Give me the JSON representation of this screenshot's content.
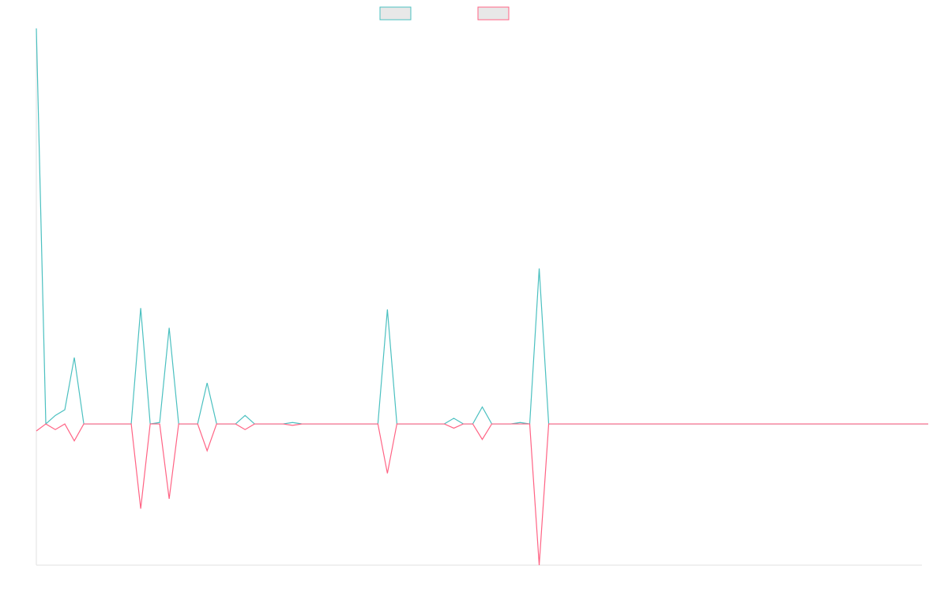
{
  "chart_data": {
    "type": "line",
    "title": "",
    "xlabel": "",
    "ylabel": "",
    "grid": false,
    "legend": "top-center",
    "x_count": 95,
    "ylim": [
      -1.0,
      2.8
    ],
    "series": [
      {
        "color": "#4bc0c0",
        "points": [
          {
            "i": 0,
            "v": 2.8
          },
          {
            "i": 2,
            "v": 0.06
          },
          {
            "i": 3,
            "v": 0.1
          },
          {
            "i": 4,
            "v": 0.47
          },
          {
            "i": 11,
            "v": 0.82
          },
          {
            "i": 13,
            "v": 0.01
          },
          {
            "i": 14,
            "v": 0.68
          },
          {
            "i": 18,
            "v": 0.29
          },
          {
            "i": 22,
            "v": 0.06
          },
          {
            "i": 27,
            "v": 0.01
          },
          {
            "i": 37,
            "v": 0.81
          },
          {
            "i": 44,
            "v": 0.04
          },
          {
            "i": 47,
            "v": 0.12
          },
          {
            "i": 51,
            "v": 0.01
          },
          {
            "i": 53,
            "v": 1.1
          }
        ]
      },
      {
        "color": "#ff6384",
        "points": [
          {
            "i": 0,
            "v": -0.05
          },
          {
            "i": 2,
            "v": -0.04
          },
          {
            "i": 4,
            "v": -0.12
          },
          {
            "i": 11,
            "v": -0.6
          },
          {
            "i": 14,
            "v": -0.53
          },
          {
            "i": 18,
            "v": -0.19
          },
          {
            "i": 22,
            "v": -0.04
          },
          {
            "i": 27,
            "v": -0.01
          },
          {
            "i": 37,
            "v": -0.35
          },
          {
            "i": 44,
            "v": -0.03
          },
          {
            "i": 47,
            "v": -0.11
          },
          {
            "i": 53,
            "v": -1.0
          }
        ]
      }
    ]
  }
}
